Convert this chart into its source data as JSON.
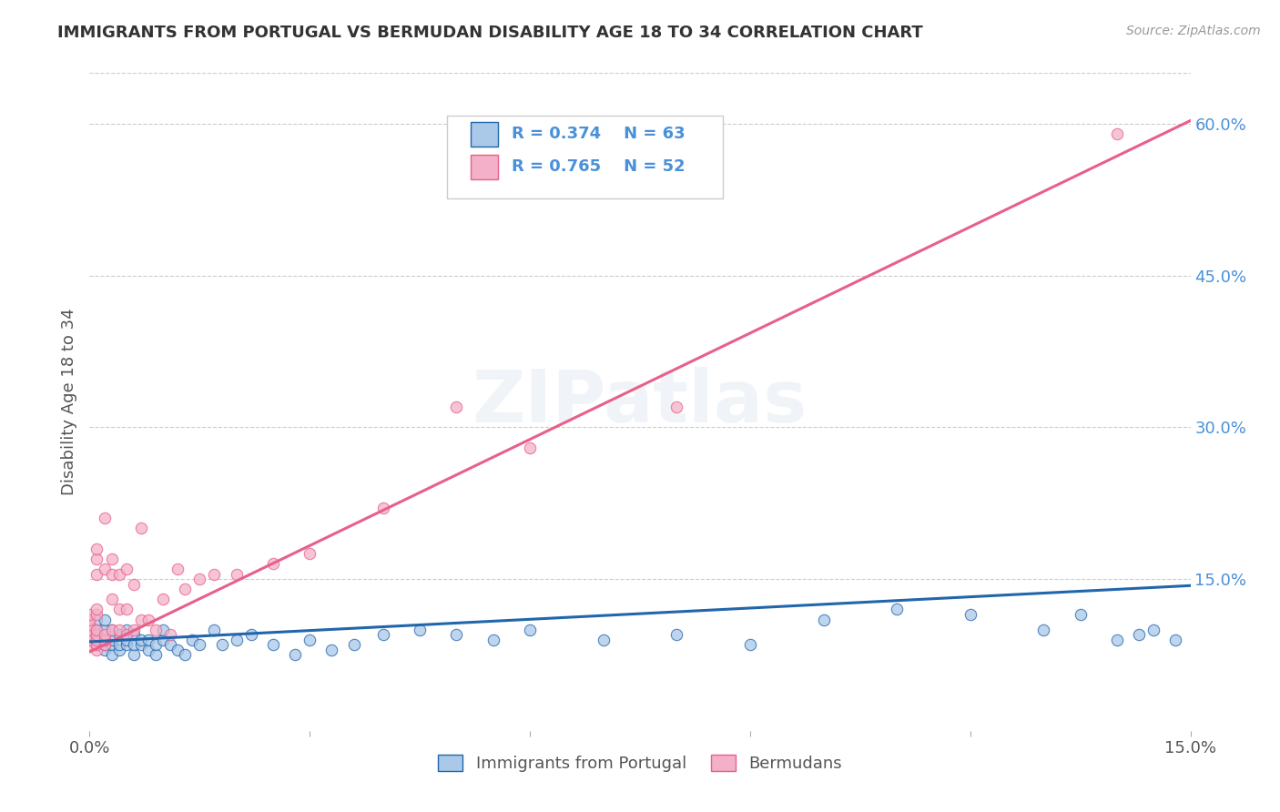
{
  "title": "IMMIGRANTS FROM PORTUGAL VS BERMUDAN DISABILITY AGE 18 TO 34 CORRELATION CHART",
  "source": "Source: ZipAtlas.com",
  "ylabel": "Disability Age 18 to 34",
  "watermark": "ZIPatlas",
  "xlim": [
    0.0,
    0.15
  ],
  "ylim": [
    0.0,
    0.65
  ],
  "xticks": [
    0.0,
    0.03,
    0.06,
    0.09,
    0.12,
    0.15
  ],
  "yticks_right": [
    0.15,
    0.3,
    0.45,
    0.6
  ],
  "ytick_right_labels": [
    "15.0%",
    "30.0%",
    "45.0%",
    "60.0%"
  ],
  "blue_R": 0.374,
  "blue_N": 63,
  "pink_R": 0.765,
  "pink_N": 52,
  "blue_line_color": "#2166ac",
  "pink_line_color": "#e8608a",
  "blue_scatter_color": "#aac8e8",
  "pink_scatter_color": "#f4b0c8",
  "legend_label_blue": "Immigrants from Portugal",
  "legend_label_pink": "Bermudans",
  "blue_points_x": [
    0.0,
    0.0,
    0.001,
    0.001,
    0.001,
    0.001,
    0.002,
    0.002,
    0.002,
    0.002,
    0.002,
    0.003,
    0.003,
    0.003,
    0.003,
    0.004,
    0.004,
    0.004,
    0.005,
    0.005,
    0.005,
    0.006,
    0.006,
    0.006,
    0.007,
    0.007,
    0.008,
    0.008,
    0.009,
    0.009,
    0.01,
    0.01,
    0.011,
    0.012,
    0.013,
    0.014,
    0.015,
    0.017,
    0.018,
    0.02,
    0.022,
    0.025,
    0.028,
    0.03,
    0.033,
    0.036,
    0.04,
    0.045,
    0.05,
    0.055,
    0.06,
    0.07,
    0.08,
    0.09,
    0.1,
    0.11,
    0.12,
    0.13,
    0.135,
    0.14,
    0.143,
    0.145,
    0.148
  ],
  "blue_points_y": [
    0.09,
    0.1,
    0.085,
    0.09,
    0.1,
    0.11,
    0.08,
    0.085,
    0.09,
    0.1,
    0.11,
    0.075,
    0.085,
    0.09,
    0.1,
    0.08,
    0.085,
    0.095,
    0.085,
    0.09,
    0.1,
    0.075,
    0.085,
    0.095,
    0.085,
    0.09,
    0.08,
    0.09,
    0.075,
    0.085,
    0.09,
    0.1,
    0.085,
    0.08,
    0.075,
    0.09,
    0.085,
    0.1,
    0.085,
    0.09,
    0.095,
    0.085,
    0.075,
    0.09,
    0.08,
    0.085,
    0.095,
    0.1,
    0.095,
    0.09,
    0.1,
    0.09,
    0.095,
    0.085,
    0.11,
    0.12,
    0.115,
    0.1,
    0.115,
    0.09,
    0.095,
    0.1,
    0.09
  ],
  "pink_points_x": [
    0.0,
    0.0,
    0.0,
    0.0,
    0.0,
    0.0,
    0.0,
    0.001,
    0.001,
    0.001,
    0.001,
    0.001,
    0.001,
    0.001,
    0.001,
    0.001,
    0.001,
    0.002,
    0.002,
    0.002,
    0.002,
    0.002,
    0.003,
    0.003,
    0.003,
    0.003,
    0.004,
    0.004,
    0.004,
    0.005,
    0.005,
    0.005,
    0.006,
    0.006,
    0.007,
    0.007,
    0.008,
    0.009,
    0.01,
    0.011,
    0.012,
    0.013,
    0.015,
    0.017,
    0.02,
    0.025,
    0.03,
    0.04,
    0.05,
    0.06,
    0.08,
    0.14
  ],
  "pink_points_y": [
    0.085,
    0.09,
    0.095,
    0.1,
    0.105,
    0.11,
    0.115,
    0.08,
    0.085,
    0.09,
    0.095,
    0.1,
    0.115,
    0.12,
    0.155,
    0.17,
    0.18,
    0.085,
    0.09,
    0.095,
    0.16,
    0.21,
    0.1,
    0.13,
    0.155,
    0.17,
    0.1,
    0.12,
    0.155,
    0.095,
    0.12,
    0.16,
    0.1,
    0.145,
    0.11,
    0.2,
    0.11,
    0.1,
    0.13,
    0.095,
    0.16,
    0.14,
    0.15,
    0.155,
    0.155,
    0.165,
    0.175,
    0.22,
    0.32,
    0.28,
    0.32,
    0.59
  ],
  "background_color": "#ffffff",
  "grid_color": "#cccccc",
  "title_color": "#333333",
  "axis_label_color": "#555555",
  "right_tick_color": "#4a90d9",
  "pink_line_intercept": 0.078,
  "pink_line_slope": 3.5,
  "blue_line_intercept": 0.088,
  "blue_line_slope": 0.37
}
